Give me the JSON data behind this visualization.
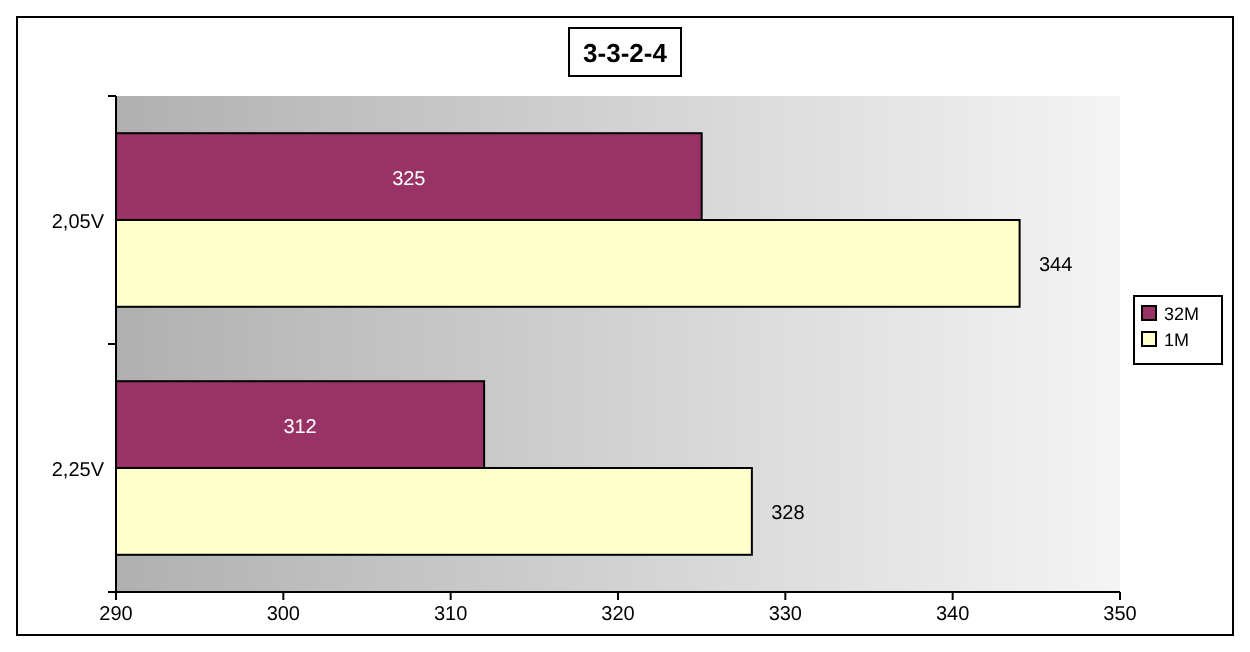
{
  "chart_data": {
    "type": "bar",
    "orientation": "horizontal",
    "title": "3-3-2-4",
    "categories": [
      "2,05V",
      "2,25V"
    ],
    "series": [
      {
        "name": "32M",
        "color": "#993366",
        "values": [
          325,
          312
        ]
      },
      {
        "name": "1M",
        "color": "#ffffcc",
        "values": [
          344,
          328
        ]
      }
    ],
    "xlim": [
      290,
      350
    ],
    "xticks": [
      290,
      300,
      310,
      320,
      330,
      340,
      350
    ],
    "data_labels": true,
    "legend": "right",
    "grid": false
  }
}
